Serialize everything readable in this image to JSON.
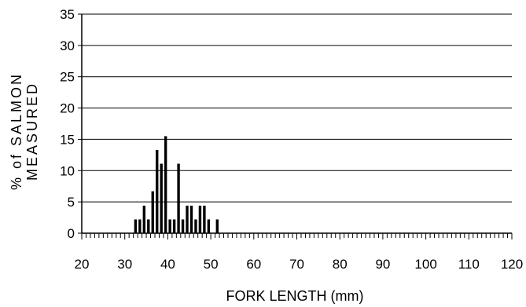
{
  "chart_data": {
    "type": "bar",
    "title": "",
    "xlabel": "FORK LENGTH (mm)",
    "ylabel_lines": [
      "% of SALMON",
      "MEASURED"
    ],
    "xlim": [
      20,
      120
    ],
    "ylim": [
      0,
      35
    ],
    "x_ticks": [
      20,
      30,
      40,
      50,
      60,
      70,
      80,
      90,
      100,
      110,
      120
    ],
    "y_ticks": [
      0,
      5,
      10,
      15,
      20,
      25,
      30,
      35
    ],
    "grid": "horizontal",
    "legend": "none",
    "bar_color": "#000000",
    "bars": [
      {
        "x": 32,
        "value": 2.2
      },
      {
        "x": 33,
        "value": 2.2
      },
      {
        "x": 34,
        "value": 4.4
      },
      {
        "x": 35,
        "value": 2.2
      },
      {
        "x": 36,
        "value": 6.7
      },
      {
        "x": 37,
        "value": 13.3
      },
      {
        "x": 38,
        "value": 11.1
      },
      {
        "x": 39,
        "value": 15.5
      },
      {
        "x": 40,
        "value": 2.2
      },
      {
        "x": 41,
        "value": 2.2
      },
      {
        "x": 42,
        "value": 11.1
      },
      {
        "x": 43,
        "value": 2.2
      },
      {
        "x": 44,
        "value": 4.4
      },
      {
        "x": 45,
        "value": 4.4
      },
      {
        "x": 46,
        "value": 2.2
      },
      {
        "x": 47,
        "value": 4.4
      },
      {
        "x": 48,
        "value": 4.4
      },
      {
        "x": 49,
        "value": 2.2
      },
      {
        "x": 51,
        "value": 2.2
      }
    ]
  }
}
